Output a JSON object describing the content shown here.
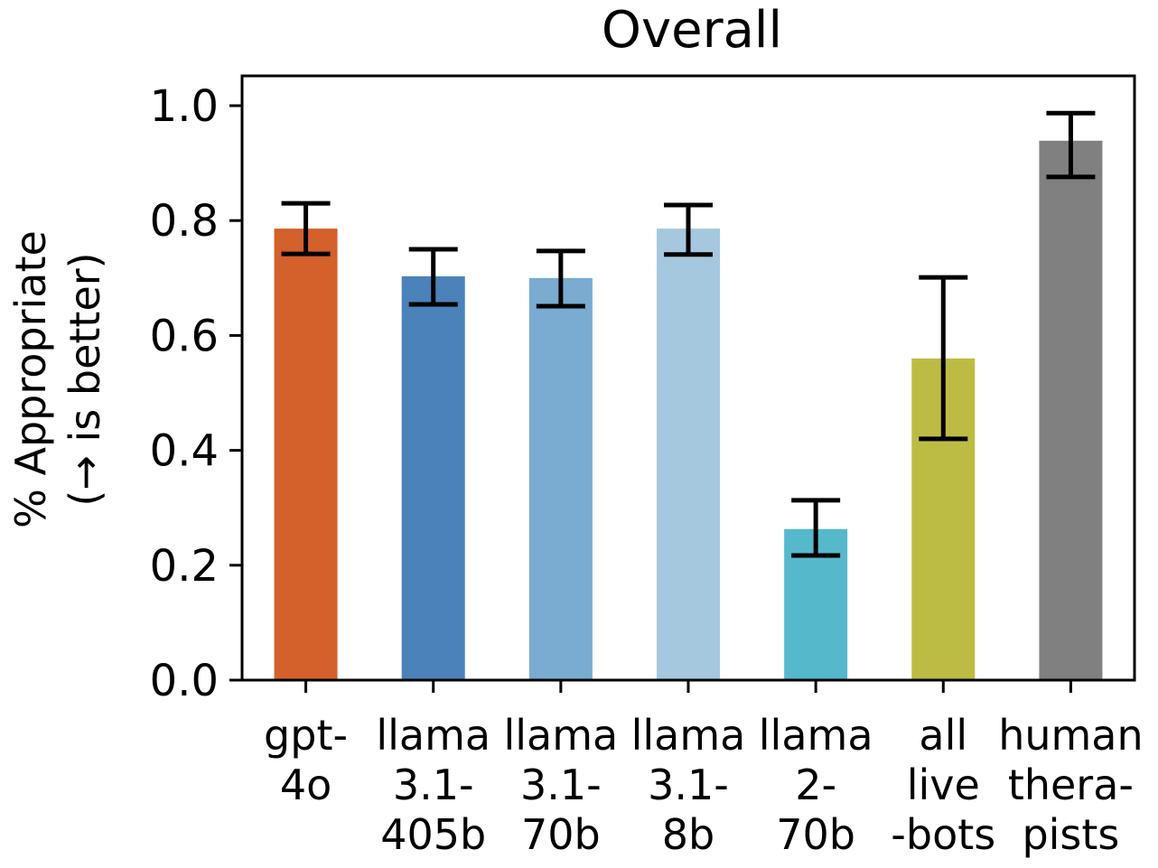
{
  "chart_data": {
    "type": "bar",
    "title": "Overall",
    "ylabel": "% Appropriate\n(→ is better)",
    "xlabel": "",
    "ylim": [
      0,
      1.05
    ],
    "yticks": [
      "0.0",
      "0.2",
      "0.4",
      "0.6",
      "0.8",
      "1.0"
    ],
    "grid": false,
    "categories": [
      [
        "gpt-",
        "4o"
      ],
      [
        "llama",
        "3.1-",
        "405b"
      ],
      [
        "llama",
        "3.1-",
        "70b"
      ],
      [
        "llama",
        "3.1-",
        "8b"
      ],
      [
        "llama",
        "2-",
        "70b"
      ],
      [
        "all",
        "live",
        "-bots"
      ],
      [
        "human",
        "thera-",
        "pists"
      ]
    ],
    "values": [
      0.786,
      0.703,
      0.7,
      0.786,
      0.263,
      0.56,
      0.939
    ],
    "error_low": [
      0.742,
      0.654,
      0.651,
      0.741,
      0.217,
      0.42,
      0.876
    ],
    "error_high": [
      0.83,
      0.75,
      0.747,
      0.827,
      0.313,
      0.701,
      0.987
    ],
    "colors": [
      "#d4602b",
      "#4a82b9",
      "#7aabd1",
      "#a6c8de",
      "#56b9cb",
      "#bcbc44",
      "#808080"
    ]
  }
}
